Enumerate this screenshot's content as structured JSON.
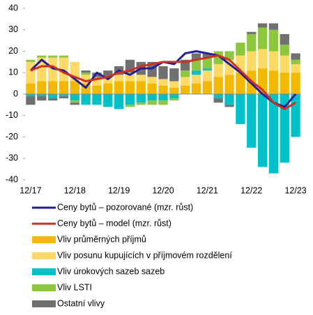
{
  "chart_data": {
    "type": "bar",
    "categories": [
      "12/17",
      null,
      null,
      null,
      "12/18",
      null,
      null,
      null,
      "12/19",
      null,
      null,
      null,
      "12/20",
      null,
      null,
      null,
      "12/21",
      null,
      null,
      null,
      "12/22",
      null,
      null,
      null,
      "12/23"
    ],
    "ylim": [
      -40,
      40
    ],
    "yticks": [
      -40,
      -30,
      -20,
      -10,
      0,
      10,
      20,
      30,
      40
    ],
    "series": [
      {
        "name": "Ceny bytů – pozorované (mzr. růst)",
        "mark": "line",
        "color": "#1f1f9a",
        "values": [
          11,
          16,
          12,
          11,
          7,
          3,
          10,
          7,
          11,
          9,
          12,
          12,
          15,
          14,
          19,
          20,
          19,
          18,
          14,
          10,
          5,
          0,
          -4,
          -6,
          0
        ]
      },
      {
        "name": "Ceny bytů – model (mzr. růst)",
        "mark": "line",
        "color": "#d03020",
        "values": [
          11,
          13,
          13,
          10,
          8,
          6,
          7,
          8,
          10,
          11,
          13,
          14,
          15,
          15,
          15,
          16,
          17,
          18,
          16,
          11,
          6,
          2,
          -4,
          -7,
          -4
        ]
      },
      {
        "name": "Vliv průměrných příjmů",
        "mark": "bar",
        "color": "#f5b800",
        "values": [
          5,
          6,
          6,
          6,
          6,
          5,
          4,
          5,
          6,
          6,
          6,
          5,
          4,
          3,
          4,
          5,
          6,
          8,
          9,
          10,
          11,
          12,
          11,
          10,
          10
        ]
      },
      {
        "name": "Vliv posunu kupujících v příjmovém rozdělení",
        "mark": "bar",
        "color": "#ffd966",
        "values": [
          10,
          11,
          11,
          11,
          9,
          4,
          3,
          3,
          3,
          4,
          3,
          3,
          3,
          3,
          4,
          4,
          5,
          6,
          7,
          8,
          9,
          9,
          9,
          8,
          4
        ]
      },
      {
        "name": "Vliv úrokových sazeb sazeb",
        "mark": "bar",
        "color": "#00c0c8",
        "values": [
          -1,
          -1,
          -2,
          -1,
          -3,
          -5,
          -5,
          -6,
          -7,
          -5,
          -4,
          -3,
          -3,
          -2,
          0,
          2,
          1,
          -2,
          -5,
          -14,
          -25,
          -34,
          -37,
          -32,
          -20
        ]
      },
      {
        "name": "Vliv LSTI",
        "mark": "bar",
        "color": "#8dc63f",
        "values": [
          1,
          1,
          1,
          1,
          -1,
          1,
          1,
          0,
          0,
          -1,
          -1,
          -2,
          -2,
          -1,
          3,
          5,
          5,
          6,
          4,
          6,
          8,
          10,
          10,
          5,
          2
        ]
      },
      {
        "name": "Ostatní vlivy",
        "mark": "bar",
        "color": "#707070",
        "values": [
          -4,
          -2,
          -1,
          -1,
          -1,
          1,
          2,
          3,
          4,
          6,
          6,
          7,
          6,
          6,
          5,
          3,
          2,
          -2,
          -1,
          0,
          1,
          2,
          3,
          5,
          3
        ]
      }
    ]
  }
}
